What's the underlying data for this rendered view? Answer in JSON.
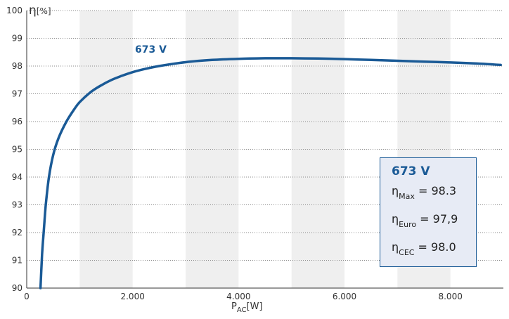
{
  "chart_data": {
    "type": "line",
    "ylabel_symbol": "η",
    "ylabel_unit": "[%]",
    "xlabel_main": "P",
    "xlabel_sub": "AC",
    "xlabel_unit": "[W]",
    "xlim": [
      0,
      9000
    ],
    "ylim": [
      90,
      100
    ],
    "x_ticks": [
      0,
      2000,
      4000,
      6000,
      8000
    ],
    "x_tick_labels": [
      "0",
      "2.000",
      "4.000",
      "6.000",
      "8.000"
    ],
    "y_ticks": [
      90,
      91,
      92,
      93,
      94,
      95,
      96,
      97,
      98,
      99,
      100
    ],
    "y_tick_labels": [
      "90",
      "91",
      "92",
      "93",
      "94",
      "95",
      "96",
      "97",
      "98",
      "99",
      "100"
    ],
    "grid": true,
    "line_color": "#1a5a96",
    "series": [
      {
        "name": "673 V",
        "x": [
          260,
          290,
          320,
          360,
          420,
          500,
          600,
          750,
          900,
          1000,
          1200,
          1400,
          1600,
          1800,
          2000,
          2200,
          2500,
          3000,
          3500,
          4000,
          4500,
          5000,
          5500,
          6000,
          6500,
          7000,
          7500,
          8000,
          8500,
          8950
        ],
        "y": [
          90.0,
          91.2,
          92.0,
          93.0,
          94.0,
          94.8,
          95.4,
          96.0,
          96.45,
          96.7,
          97.05,
          97.3,
          97.5,
          97.65,
          97.78,
          97.88,
          98.0,
          98.14,
          98.22,
          98.26,
          98.28,
          98.28,
          98.27,
          98.25,
          98.22,
          98.19,
          98.16,
          98.13,
          98.09,
          98.04
        ]
      }
    ]
  },
  "info_box": {
    "title": "673 V",
    "rows": [
      {
        "symbol": "η",
        "sub": "Max",
        "value": "= 98.3"
      },
      {
        "symbol": "η",
        "sub": "Euro",
        "value": "= 97,9"
      },
      {
        "symbol": "η",
        "sub": "CEC",
        "value": "= 98.0"
      }
    ]
  }
}
